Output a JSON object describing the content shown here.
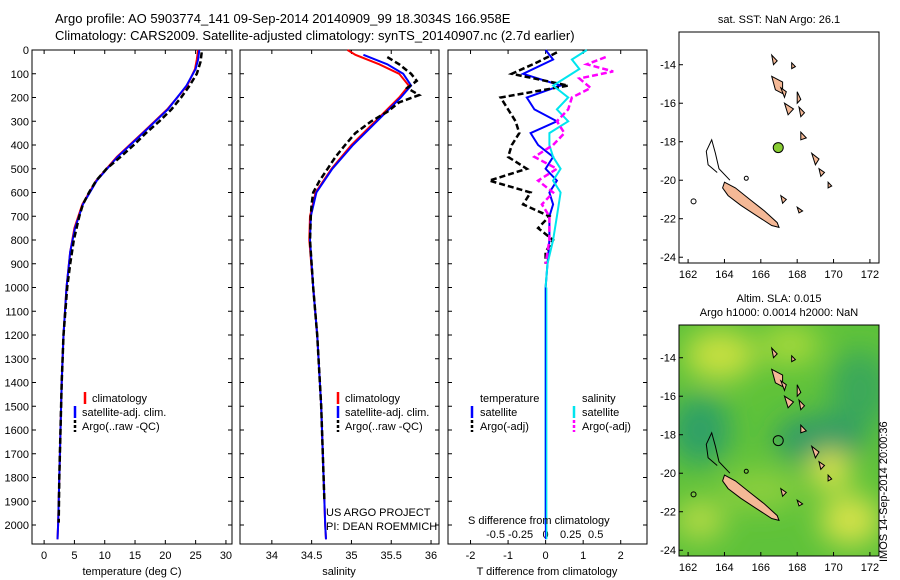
{
  "header": {
    "title_line1": "Argo profile: AO 5903774_141 09-Sep-2014 20140909_99 18.3034S 166.958E",
    "title_line2": "Climatology: CARS2009. Satellite-adjusted climatology: synTS_20140907.nc (2.7d earlier)"
  },
  "colors": {
    "climatology": "#ff0000",
    "satellite": "#0000ff",
    "argo": "#000000",
    "salinity_sat": "#00e5ee",
    "salinity_argo": "#ff00ff",
    "land": "#f4b896",
    "buoy": "#88cc33"
  },
  "chart_data": [
    {
      "id": "temperature",
      "type": "line",
      "xlabel": "temperature (deg C)",
      "ylabel": "",
      "xlim": [
        -2,
        31
      ],
      "ylim": [
        2080,
        0
      ],
      "xticks": [
        "0",
        "5",
        "10",
        "15",
        "20",
        "25",
        "30"
      ],
      "yticks": [
        "0",
        "100",
        "200",
        "300",
        "400",
        "500",
        "600",
        "700",
        "800",
        "900",
        "1000",
        "1100",
        "1200",
        "1300",
        "1400",
        "1500",
        "1600",
        "1700",
        "1800",
        "1900",
        "2000"
      ],
      "legend": [
        "climatology",
        "satellite-adj. clim.",
        "Argo(..raw -QC)"
      ],
      "series": [
        {
          "name": "climatology",
          "color": "#ff0000",
          "depth": [
            0,
            40,
            80,
            150,
            250,
            350,
            450,
            550,
            650,
            750,
            850,
            1000,
            1200,
            1400,
            1600,
            1800,
            2000,
            2060
          ],
          "values": [
            25.4,
            25.2,
            24.9,
            23.6,
            20.3,
            16.2,
            12.0,
            8.6,
            6.3,
            5.0,
            4.3,
            3.7,
            3.2,
            2.9,
            2.7,
            2.5,
            2.3,
            2.2
          ]
        },
        {
          "name": "satellite-adj. clim.",
          "color": "#0000ff",
          "depth": [
            0,
            40,
            80,
            150,
            250,
            350,
            450,
            550,
            650,
            750,
            850,
            1000,
            1200,
            1400,
            1600,
            1800,
            2000,
            2060
          ],
          "values": [
            25.6,
            25.4,
            25.0,
            23.5,
            20.4,
            16.3,
            12.1,
            8.7,
            6.4,
            5.1,
            4.3,
            3.7,
            3.2,
            2.9,
            2.7,
            2.5,
            2.3,
            2.2
          ]
        },
        {
          "name": "Argo(..raw -QC)",
          "color": "#000000",
          "dash": true,
          "depth": [
            10,
            50,
            100,
            150,
            200,
            250,
            300,
            350,
            400,
            450,
            500,
            550,
            600,
            650,
            700,
            800,
            900,
            1000,
            1200,
            1400,
            1600,
            1800,
            1990
          ],
          "values": [
            26.0,
            25.8,
            25.2,
            24.0,
            22.6,
            21.0,
            19.0,
            16.8,
            14.8,
            12.6,
            10.3,
            8.6,
            7.4,
            6.4,
            5.8,
            4.9,
            4.3,
            3.8,
            3.2,
            2.9,
            2.7,
            2.5,
            2.4
          ]
        }
      ]
    },
    {
      "id": "salinity",
      "type": "line",
      "xlabel": "salinity",
      "ylabel": "",
      "xlim": [
        33.6,
        36.1
      ],
      "ylim": [
        2080,
        0
      ],
      "xticks": [
        "34",
        "34.5",
        "35",
        "35.5",
        "36"
      ],
      "legend": [
        "climatology",
        "satellite-adj. clim.",
        "Argo(..raw -QC)"
      ],
      "annotations": [
        "US ARGO PROJECT",
        "PI: DEAN ROEMMICH"
      ],
      "series": [
        {
          "name": "climatology",
          "color": "#ff0000",
          "depth": [
            0,
            20,
            60,
            100,
            150,
            200,
            300,
            400,
            500,
            600,
            700,
            800,
            1000,
            1200,
            1500,
            2000,
            2060
          ],
          "values": [
            34.95,
            35.05,
            35.35,
            35.6,
            35.72,
            35.6,
            35.3,
            35.0,
            34.75,
            34.55,
            34.48,
            34.47,
            34.52,
            34.57,
            34.62,
            34.67,
            34.68
          ]
        },
        {
          "name": "satellite-adj. clim.",
          "color": "#0000ff",
          "depth": [
            20,
            60,
            100,
            150,
            200,
            300,
            400,
            500,
            600,
            700,
            800,
            1000,
            1200,
            1500,
            2000,
            2060
          ],
          "values": [
            35.15,
            35.45,
            35.65,
            35.75,
            35.62,
            35.32,
            35.02,
            34.76,
            34.56,
            34.49,
            34.48,
            34.52,
            34.57,
            34.62,
            34.67,
            34.68
          ]
        },
        {
          "name": "Argo(..raw -QC)",
          "color": "#000000",
          "dash": true,
          "depth": [
            30,
            60,
            100,
            130,
            160,
            190,
            220,
            260,
            300,
            350,
            400,
            450,
            500,
            550,
            600,
            650,
            700,
            800,
            1000,
            1200,
            1500,
            1900
          ],
          "values": [
            35.45,
            35.6,
            35.75,
            35.82,
            35.7,
            35.85,
            35.6,
            35.45,
            35.25,
            35.05,
            34.92,
            34.8,
            34.7,
            34.6,
            34.52,
            34.5,
            34.49,
            34.48,
            34.52,
            34.57,
            34.62,
            34.66
          ]
        }
      ]
    },
    {
      "id": "difference",
      "type": "line",
      "xlabel": "T difference from climatology",
      "xlabel_top": "S difference from climatology",
      "xlim": [
        -2.6,
        2.7
      ],
      "ylim": [
        2080,
        0
      ],
      "xticks": [
        "-2",
        "-1",
        "0",
        "1",
        "2"
      ],
      "xticks_s": [
        "-0.5",
        "-0.25",
        "0",
        "0.25",
        "0.5"
      ],
      "legend_titles": [
        "temperature",
        "salinity"
      ],
      "legend": [
        "satellite",
        "Argo(-adj)",
        "satellite",
        "Argo(-adj)"
      ],
      "series": [
        {
          "name": "satellite",
          "color": "#0000ff",
          "depth": [
            0,
            40,
            100,
            150,
            200,
            250,
            300,
            350,
            400,
            450,
            500,
            550,
            600,
            650,
            700,
            800,
            900,
            1000,
            2000
          ],
          "values": [
            0,
            0.2,
            -0.6,
            0.4,
            -0.5,
            -0.3,
            0.3,
            -0.4,
            -0.2,
            0.2,
            0,
            0.3,
            0.1,
            0.2,
            0.1,
            0.1,
            0.05,
            0,
            0
          ]
        },
        {
          "name": "Argo(-adj)",
          "color": "#000000",
          "dash": true,
          "depth": [
            10,
            50,
            100,
            150,
            200,
            250,
            300,
            350,
            400,
            450,
            500,
            550,
            600,
            650,
            700,
            750,
            800,
            850,
            900
          ],
          "values": [
            0.3,
            -0.2,
            -0.9,
            0.6,
            -1.2,
            -1.0,
            -0.8,
            -0.7,
            -0.9,
            -1.0,
            -0.5,
            -1.5,
            -0.4,
            -0.6,
            0.1,
            -0.2,
            0.2,
            0,
            0
          ]
        },
        {
          "name": "satellite",
          "color": "#00e5ee",
          "depth": [
            0,
            40,
            80,
            150,
            200,
            250,
            300,
            350,
            400,
            450,
            500,
            550,
            600,
            700,
            800,
            900,
            1000,
            2000
          ],
          "values": [
            1.1,
            0.7,
            0.9,
            0.2,
            0.6,
            0.3,
            0.6,
            0.1,
            0.1,
            0.2,
            0.4,
            0.2,
            0.4,
            0.3,
            0.2,
            0.05,
            0,
            0
          ]
        },
        {
          "name": "Argo(-adj)",
          "color": "#ff00ff",
          "dash": true,
          "depth": [
            30,
            60,
            90,
            120,
            160,
            200,
            250,
            300,
            350,
            400,
            450,
            500,
            550,
            600,
            650,
            700,
            800,
            900
          ],
          "values": [
            1.6,
            1.1,
            1.8,
            0.9,
            1.2,
            0.7,
            0.6,
            0.3,
            0.5,
            0.2,
            -0.3,
            0.3,
            -0.2,
            0.2,
            -0.1,
            0.1,
            0.1,
            0
          ]
        }
      ]
    },
    {
      "id": "map_sst",
      "type": "scatter",
      "title": "sat. SST: NaN Argo: 26.1",
      "xlim": [
        161.5,
        172.5
      ],
      "ylim": [
        -24.3,
        -12.3
      ],
      "xticks": [
        "162",
        "164",
        "166",
        "168",
        "170",
        "172"
      ],
      "yticks": [
        "-14",
        "-16",
        "-18",
        "-20",
        "-22",
        "-24"
      ],
      "points": [
        {
          "lon": 166.958,
          "lat": -18.3034
        }
      ]
    },
    {
      "id": "map_sla",
      "type": "heatmap",
      "title": "Altim. SLA: 0.015",
      "subtitle": "Argo h1000: 0.0014 h2000: NaN",
      "xlim": [
        161.5,
        172.5
      ],
      "ylim": [
        -24.3,
        -12.3
      ],
      "xticks": [
        "162",
        "164",
        "166",
        "168",
        "170",
        "172"
      ],
      "yticks": [
        "-14",
        "-16",
        "-18",
        "-20",
        "-22",
        "-24"
      ],
      "points": [
        {
          "lon": 166.958,
          "lat": -18.3034
        }
      ]
    }
  ],
  "footer": {
    "timestamp": "IMOS 14-Sep-2014 20:00:36"
  }
}
